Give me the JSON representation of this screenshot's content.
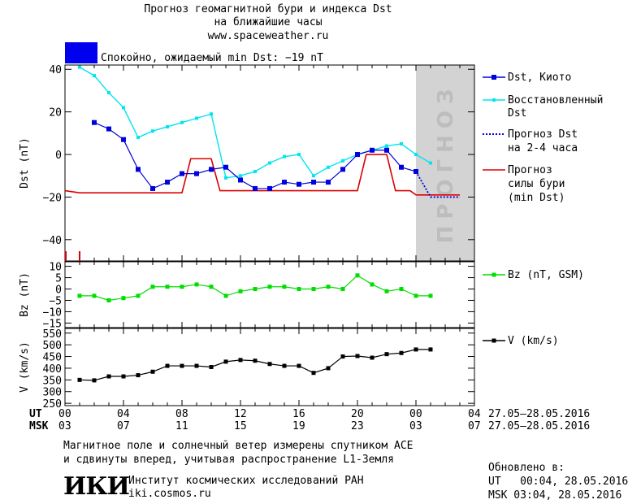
{
  "title": {
    "line1": "Прогноз геомагнитной бури и индекса Dst",
    "line2": "на ближайшие часы",
    "line3": "www.spaceweather.ru"
  },
  "status": {
    "text": "Спокойно, ожидаемый min Dst: −19 nT",
    "color": "#0000ee"
  },
  "forecast_watermark": "ПРОГНОЗ",
  "legend": {
    "dst_kyoto": "Dst, Киото",
    "restored_1": "Восстановленный",
    "restored_2": "Dst",
    "forecast_dst_1": "Прогноз Dst",
    "forecast_dst_2": "на 2-4 часа",
    "storm_1": "Прогноз",
    "storm_2": "силы бури",
    "storm_3": "(min Dst)",
    "bz": "Bz (nT, GSM)",
    "v": "V (km/s)"
  },
  "time_axis": {
    "ut_label": "UT",
    "msk_label": "MSK",
    "ut_ticks": [
      "00",
      "04",
      "08",
      "12",
      "16",
      "20",
      "00",
      "04"
    ],
    "msk_ticks": [
      "03",
      "07",
      "11",
      "15",
      "19",
      "23",
      "03",
      "07"
    ],
    "range_ut": "27.05–28.05.2016",
    "range_msk": "27.05–28.05.2016"
  },
  "footer": {
    "note_1": "Магнитное поле и солнечный ветер измерены спутником ACE",
    "note_2": "и сдвинуты вперед, учитывая распространение L1-Земля",
    "institute": "Институт космических исследований РАН",
    "site": "iki.cosmos.ru",
    "logo": "ИКИ",
    "updated_label": "Обновлено в:",
    "updated_ut": "UT   00:04, 28.05.2016",
    "updated_msk": "MSK 03:04, 28.05.2016"
  },
  "colors": {
    "dst": "#0000dd",
    "restored": "#00e5ee",
    "forecast": "#0000dd",
    "storm": "#dd0000",
    "bz": "#00dd00",
    "v": "#000000",
    "forecast_zone": "#d3d3d3"
  },
  "chart_data": [
    {
      "type": "line",
      "ylabel": "Dst (nT)",
      "xlabel": "UT / MSK",
      "xlim": [
        0,
        28
      ],
      "ylim": [
        -50,
        42
      ],
      "yticks": [
        40,
        20,
        0,
        -20,
        -40
      ],
      "forecast_zone_x": [
        24,
        28
      ],
      "series": [
        {
          "name": "Dst, Киото",
          "x": [
            2,
            3,
            4,
            5,
            6,
            7,
            8,
            9,
            10,
            11,
            12,
            13,
            14,
            15,
            16,
            17,
            18,
            19,
            20,
            21,
            22,
            23,
            24
          ],
          "y": [
            15,
            12,
            7,
            -7,
            -16,
            -13,
            -9,
            -9,
            -7,
            -6,
            -12,
            -16,
            -16,
            -13,
            -14,
            -13,
            -13,
            -7,
            0,
            2,
            2,
            -6,
            -8
          ]
        },
        {
          "name": "Восстановленный Dst",
          "x": [
            1,
            2,
            3,
            4,
            5,
            6,
            7,
            8,
            9,
            10,
            11,
            12,
            13,
            14,
            15,
            16,
            17,
            18,
            19,
            20,
            21,
            22,
            23,
            24,
            25
          ],
          "y": [
            41,
            37,
            29,
            22,
            8,
            11,
            13,
            15,
            17,
            19,
            -11,
            -10,
            -8,
            -4,
            -1,
            0,
            -10,
            -6,
            -3,
            0,
            2,
            4,
            5,
            0,
            -4
          ]
        },
        {
          "name": "Прогноз Dst на 2-4 часа",
          "x": [
            24,
            25,
            26,
            27
          ],
          "y": [
            -8,
            -20,
            -20,
            -20
          ]
        },
        {
          "name": "Прогноз силы бури (min Dst)",
          "x": [
            0,
            1,
            2,
            3,
            4,
            5,
            6,
            7,
            8,
            8.6,
            9,
            9.6,
            10,
            10.6,
            11,
            12,
            13,
            14,
            15,
            16,
            17,
            18,
            19,
            20,
            20.6,
            21,
            22,
            22.6,
            23,
            23.6,
            24,
            25,
            26,
            27
          ],
          "y": [
            -17,
            -18,
            -18,
            -18,
            -18,
            -18,
            -18,
            -18,
            -18,
            -2,
            -2,
            -2,
            -2,
            -17,
            -17,
            -17,
            -17,
            -17,
            -17,
            -17,
            -17,
            -17,
            -17,
            -17,
            0,
            0,
            0,
            -17,
            -17,
            -17,
            -19,
            -19,
            -19,
            -19
          ]
        }
      ]
    },
    {
      "type": "line",
      "ylabel": "Bz (nT)",
      "xlim": [
        0,
        28
      ],
      "ylim": [
        -17,
        12
      ],
      "yticks": [
        10,
        5,
        0,
        -5,
        -10,
        -15
      ],
      "series": [
        {
          "name": "Bz (nT, GSM)",
          "x": [
            1,
            2,
            3,
            4,
            5,
            6,
            7,
            8,
            9,
            10,
            11,
            12,
            13,
            14,
            15,
            16,
            17,
            18,
            19,
            20,
            21,
            22,
            23,
            24,
            25
          ],
          "y": [
            -3,
            -3,
            -5,
            -4,
            -3,
            1,
            1,
            1,
            2,
            1,
            -3,
            -1,
            0,
            1,
            1,
            0,
            0,
            1,
            0,
            6,
            2,
            -1,
            0,
            -3,
            -3
          ]
        }
      ]
    },
    {
      "type": "line",
      "ylabel": "V (km/s)",
      "xlim": [
        0,
        28
      ],
      "ylim": [
        240,
        570
      ],
      "yticks": [
        550,
        500,
        450,
        400,
        350,
        300,
        250
      ],
      "series": [
        {
          "name": "V (km/s)",
          "x": [
            1,
            2,
            3,
            4,
            5,
            6,
            7,
            8,
            9,
            10,
            11,
            12,
            13,
            14,
            15,
            16,
            17,
            18,
            19,
            20,
            21,
            22,
            23,
            24,
            25
          ],
          "y": [
            350,
            348,
            365,
            365,
            370,
            385,
            410,
            410,
            410,
            405,
            428,
            435,
            432,
            418,
            410,
            410,
            380,
            400,
            450,
            452,
            445,
            460,
            465,
            480,
            480
          ]
        }
      ]
    }
  ]
}
